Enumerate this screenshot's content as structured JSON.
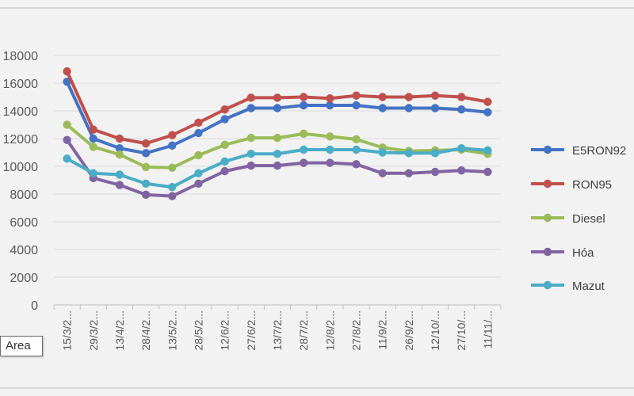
{
  "chart_data": {
    "type": "line",
    "title": "",
    "xlabel": "",
    "ylabel": "",
    "ylim": [
      0,
      18000
    ],
    "yticks": [
      "0",
      "2000",
      "4000",
      "6000",
      "8000",
      "10000",
      "12000",
      "14000",
      "16000",
      "18000"
    ],
    "grid": true,
    "legend": "right",
    "categories": [
      "15/3/2...",
      "29/3/2...",
      "13/4/2...",
      "28/4/2...",
      "13/5/2...",
      "28/5/2...",
      "12/6/2...",
      "27/6/2...",
      "13/7/2...",
      "28/7/2...",
      "12/8/2...",
      "27/8/2...",
      "11/9/2...",
      "26/9/2...",
      "12/10/...",
      "27/10/...",
      "11/11/..."
    ],
    "series": [
      {
        "name": "E5RON92",
        "color": "#4472c4",
        "values": [
          16100,
          12000,
          11300,
          10950,
          11500,
          12400,
          13400,
          14200,
          14200,
          14400,
          14400,
          14400,
          14200,
          14200,
          14200,
          14100,
          13900
        ]
      },
      {
        "name": "RON95",
        "color": "#c0504d",
        "values": [
          16850,
          12650,
          12000,
          11650,
          12250,
          13150,
          14100,
          14950,
          14950,
          15000,
          14900,
          15100,
          15000,
          15000,
          15100,
          15000,
          14650
        ]
      },
      {
        "name": "Diesel",
        "color": "#9bbb59",
        "values": [
          13000,
          11400,
          10850,
          9950,
          9900,
          10800,
          11550,
          12050,
          12050,
          12350,
          12150,
          11950,
          11350,
          11100,
          11150,
          11200,
          10900
        ]
      },
      {
        "name": "Hóa",
        "color": "#8064a2",
        "values": [
          11900,
          9150,
          8650,
          7950,
          7850,
          8750,
          9650,
          10050,
          10050,
          10250,
          10250,
          10150,
          9500,
          9500,
          9600,
          9700,
          9600
        ]
      },
      {
        "name": "Mazut",
        "color": "#4bacc6",
        "values": [
          10550,
          9500,
          9400,
          8750,
          8500,
          9500,
          10350,
          10900,
          10900,
          11200,
          11200,
          11200,
          11000,
          10950,
          10950,
          11300,
          11150
        ]
      }
    ]
  },
  "area_label": "Area"
}
